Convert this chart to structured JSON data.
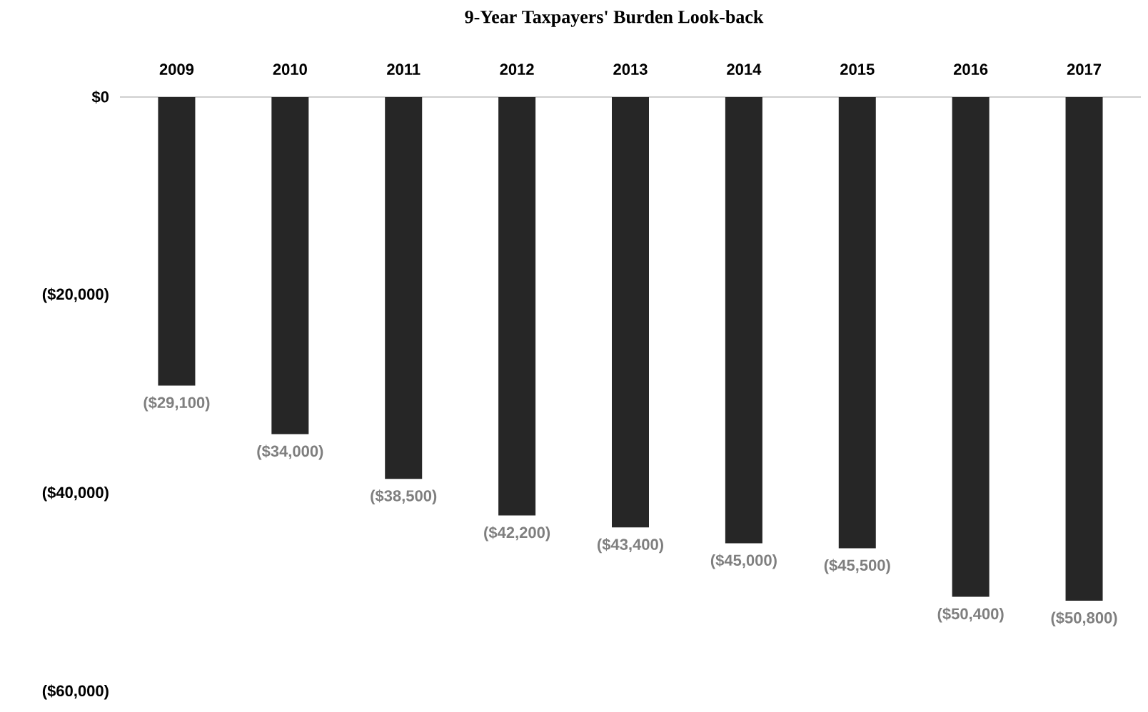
{
  "chart_data": {
    "type": "bar",
    "title": "9-Year Taxpayers' Burden Look-back",
    "categories": [
      "2009",
      "2010",
      "2011",
      "2012",
      "2013",
      "2014",
      "2015",
      "2016",
      "2017"
    ],
    "values": [
      -29100,
      -34000,
      -38500,
      -42200,
      -43400,
      -45000,
      -45500,
      -50400,
      -50800
    ],
    "value_labels": [
      "($29,100)",
      "($34,000)",
      "($38,500)",
      "($42,200)",
      "($43,400)",
      "($45,000)",
      "($45,500)",
      "($50,400)",
      "($50,800)"
    ],
    "color": "#262626",
    "ylim": [
      -60000,
      0
    ],
    "yticks": [
      {
        "value": 0,
        "label": "$0"
      },
      {
        "value": -20000,
        "label": "($20,000)"
      },
      {
        "value": -40000,
        "label": "($40,000)"
      },
      {
        "value": -60000,
        "label": "($60,000)"
      }
    ],
    "grid": false
  }
}
